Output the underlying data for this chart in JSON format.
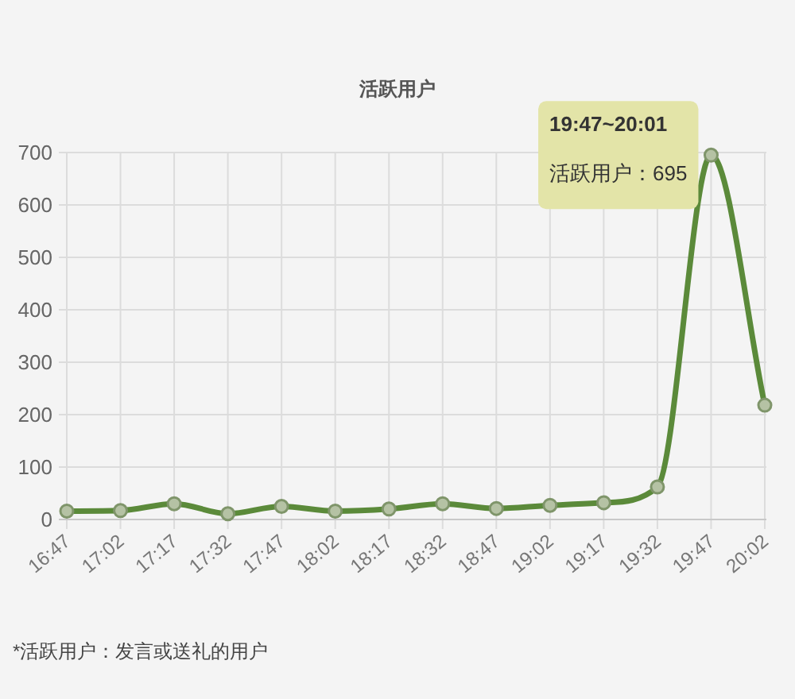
{
  "chart_data": {
    "type": "line",
    "title": "活跃用户",
    "categories": [
      "16:47",
      "17:02",
      "17:17",
      "17:32",
      "17:47",
      "18:02",
      "18:17",
      "18:32",
      "18:47",
      "19:02",
      "19:17",
      "19:32",
      "19:47",
      "20:02"
    ],
    "values": [
      16,
      17,
      30,
      11,
      25,
      16,
      20,
      30,
      21,
      27,
      32,
      62,
      695,
      218
    ],
    "color": "#5b8a3a",
    "ylim": [
      0,
      700
    ],
    "yticks": [
      0,
      100,
      200,
      300,
      400,
      500,
      600,
      700
    ],
    "grid": true,
    "marker": "circle",
    "line_style": "solid",
    "annotations": [
      {
        "text": "19:47~20:01",
        "x": "19:47",
        "y": 695
      },
      {
        "text": "活跃用户：695",
        "x": "19:47",
        "y": 695
      },
      "*活跃用户：发言或送礼的用户"
    ]
  }
}
